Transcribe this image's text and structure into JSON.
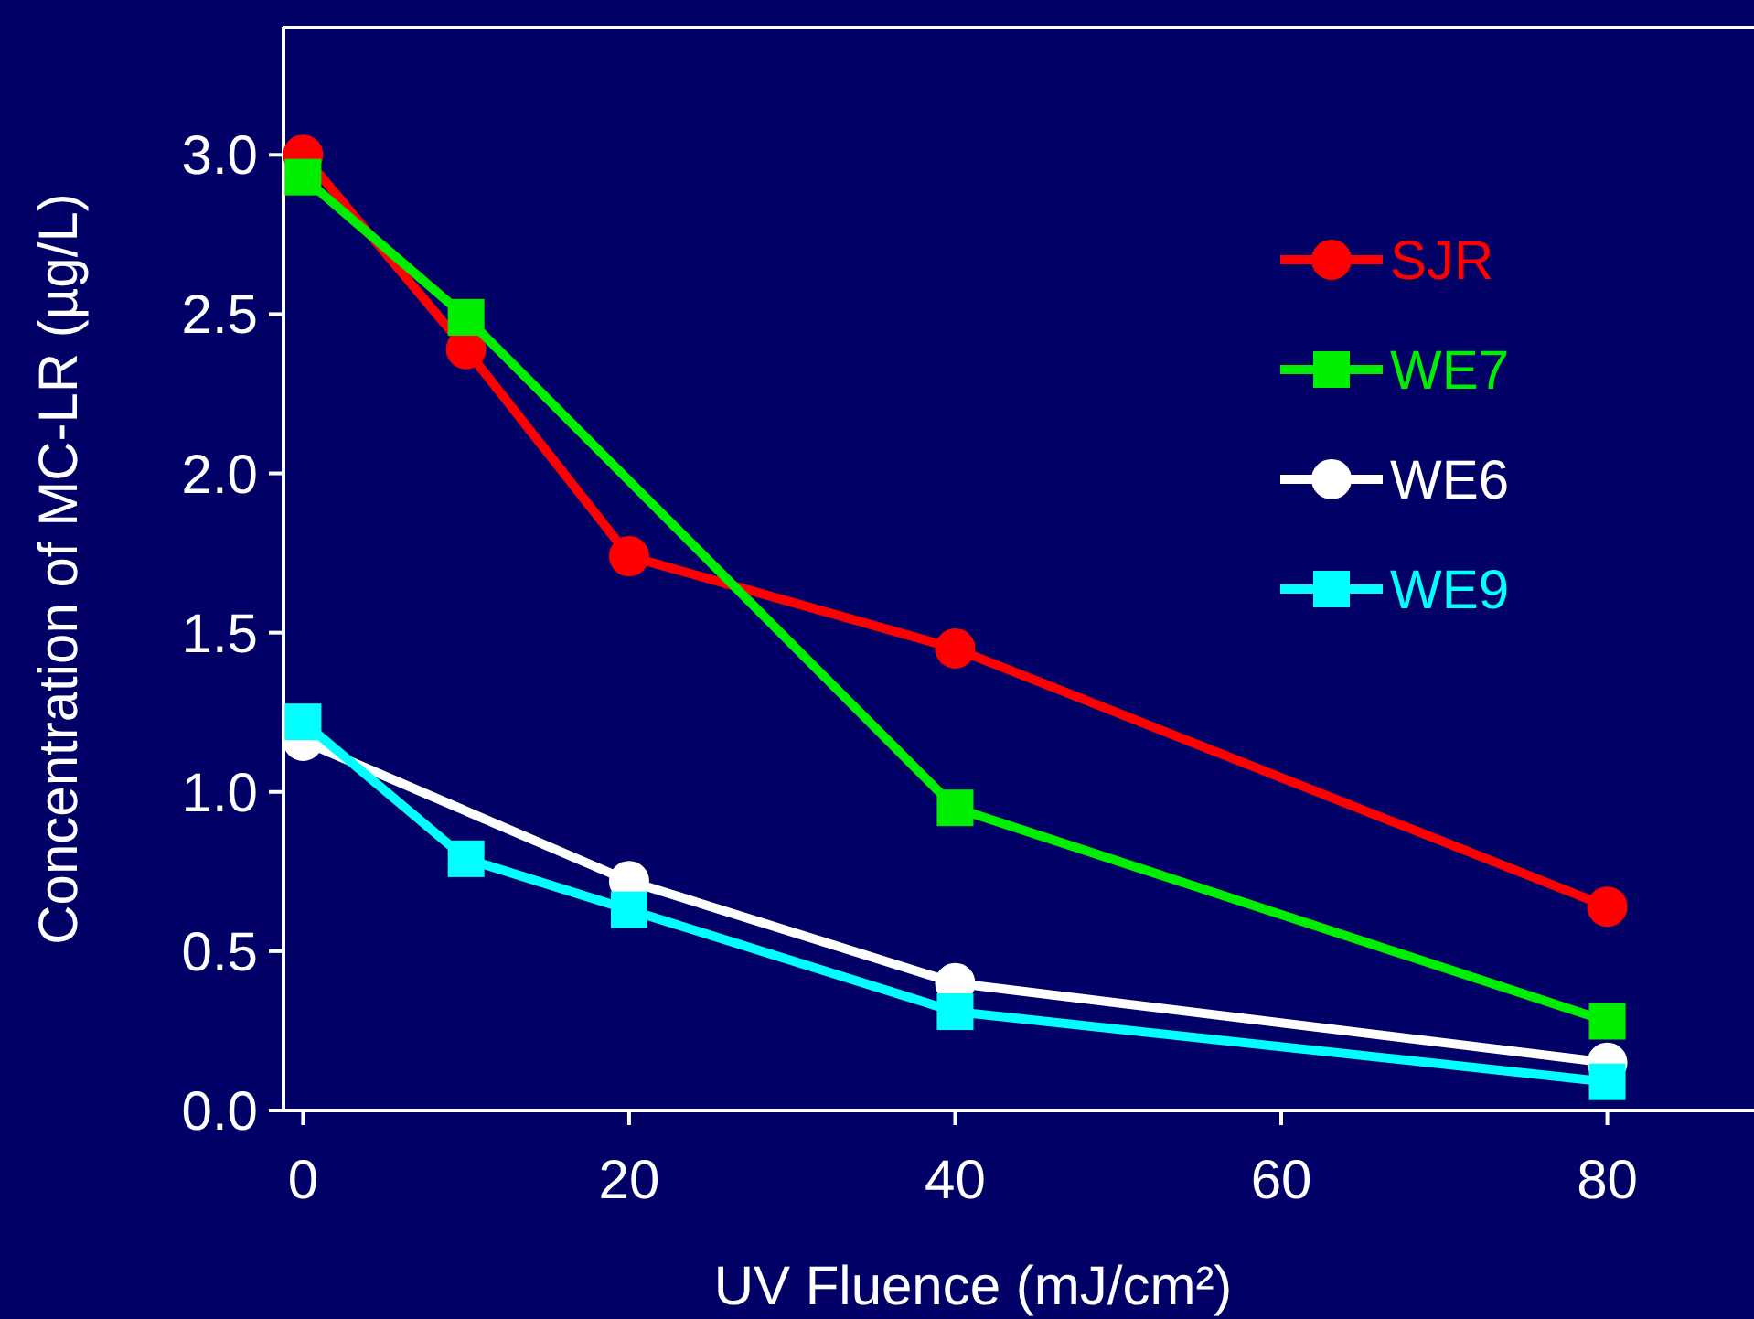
{
  "chart_data": {
    "type": "line",
    "xlabel": "UV Fluence (mJ/cm²)",
    "ylabel": "Concentration of MC-LR (µg/L)",
    "xlim": [
      -1.2,
      89
    ],
    "xticks": [
      0,
      20,
      40,
      60,
      80
    ],
    "ylim": [
      0,
      3.4
    ],
    "yticks": [
      "0.0",
      0.5,
      "1.0",
      1.5,
      "2.0",
      2.5,
      "3.0"
    ],
    "grid": false,
    "legend": "top right",
    "series": [
      {
        "name": "SJR",
        "color": "#ff0000",
        "marker": "circle",
        "x": [
          0,
          10,
          20,
          40,
          80
        ],
        "values": [
          3.0,
          2.39,
          1.74,
          1.45,
          0.64
        ]
      },
      {
        "name": "WE7",
        "color": "#00ee00",
        "marker": "square",
        "x": [
          0,
          10,
          40,
          80
        ],
        "values": [
          2.93,
          2.49,
          0.95,
          0.28
        ]
      },
      {
        "name": "WE6",
        "color": "#ffffff",
        "marker": "circle",
        "x": [
          0,
          20,
          40,
          80
        ],
        "values": [
          1.16,
          0.72,
          0.4,
          0.15
        ]
      },
      {
        "name": "WE9",
        "color": "#00ffff",
        "marker": "square",
        "x": [
          0,
          10,
          20,
          40,
          80
        ],
        "values": [
          1.22,
          0.79,
          0.63,
          0.31,
          0.09
        ]
      }
    ]
  }
}
